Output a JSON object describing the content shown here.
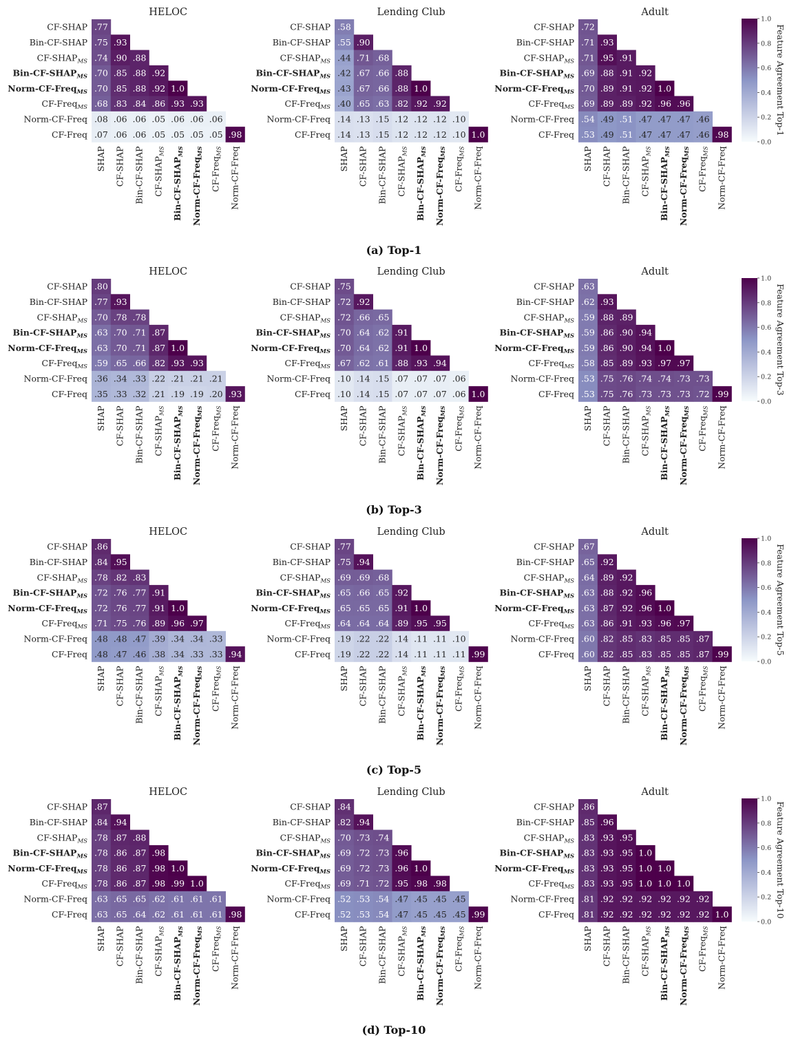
{
  "labels": {
    "rows": [
      {
        "base": "CF-SHAP",
        "sub": "",
        "bold": false
      },
      {
        "base": "Bin-CF-SHAP",
        "sub": "",
        "bold": false
      },
      {
        "base": "CF-SHAP",
        "sub": "MS",
        "bold": false
      },
      {
        "base": "Bin-CF-SHAP",
        "sub": "MS",
        "bold": true
      },
      {
        "base": "Norm-CF-Freq",
        "sub": "MS",
        "bold": true
      },
      {
        "base": "CF-Freq",
        "sub": "MS",
        "bold": false
      },
      {
        "base": "Norm-CF-Freq",
        "sub": "",
        "bold": false
      },
      {
        "base": "CF-Freq",
        "sub": "",
        "bold": false
      }
    ],
    "cols": [
      {
        "base": "SHAP",
        "sub": "",
        "bold": false
      },
      {
        "base": "CF-SHAP",
        "sub": "",
        "bold": false
      },
      {
        "base": "Bin-CF-SHAP",
        "sub": "",
        "bold": false
      },
      {
        "base": "CF-SHAP",
        "sub": "MS",
        "bold": false
      },
      {
        "base": "Bin-CF-SHAP",
        "sub": "MS",
        "bold": true
      },
      {
        "base": "Norm-CF-Freq",
        "sub": "MS",
        "bold": true
      },
      {
        "base": "CF-Freq",
        "sub": "MS",
        "bold": false
      },
      {
        "base": "Norm-CF-Freq",
        "sub": "",
        "bold": false
      }
    ]
  },
  "colorbar": {
    "ticks": [
      "0.0",
      "0.2",
      "0.4",
      "0.6",
      "0.8",
      "1.0"
    ]
  },
  "colors": {
    "low": "#f7fcfd",
    "mid": "#8c96c6",
    "high": "#4d004b"
  },
  "chart_data": [
    {
      "type": "heatmap",
      "caption": "(a) Top-1",
      "colorbar_label": "Feature Agreement Top-1",
      "panels": [
        {
          "title": "HELOC",
          "values": [
            [
              ".77"
            ],
            [
              ".75",
              ".93"
            ],
            [
              ".74",
              ".90",
              ".88"
            ],
            [
              ".70",
              ".85",
              ".88",
              ".92"
            ],
            [
              ".70",
              ".85",
              ".88",
              ".92",
              "1.0"
            ],
            [
              ".68",
              ".83",
              ".84",
              ".86",
              ".93",
              ".93"
            ],
            [
              ".08",
              ".06",
              ".06",
              ".05",
              ".06",
              ".06",
              ".06"
            ],
            [
              ".07",
              ".06",
              ".06",
              ".05",
              ".05",
              ".05",
              ".05",
              ".98"
            ]
          ]
        },
        {
          "title": "Lending Club",
          "values": [
            [
              ".58"
            ],
            [
              ".55",
              ".90"
            ],
            [
              ".44",
              ".71",
              ".68"
            ],
            [
              ".42",
              ".67",
              ".66",
              ".88"
            ],
            [
              ".43",
              ".67",
              ".66",
              ".88",
              "1.0"
            ],
            [
              ".40",
              ".65",
              ".63",
              ".82",
              ".92",
              ".92"
            ],
            [
              ".14",
              ".13",
              ".15",
              ".12",
              ".12",
              ".12",
              ".10"
            ],
            [
              ".14",
              ".13",
              ".15",
              ".12",
              ".12",
              ".12",
              ".10",
              "1.0"
            ]
          ]
        },
        {
          "title": "Adult",
          "values": [
            [
              ".72"
            ],
            [
              ".71",
              ".93"
            ],
            [
              ".71",
              ".95",
              ".91"
            ],
            [
              ".69",
              ".88",
              ".91",
              ".92"
            ],
            [
              ".70",
              ".89",
              ".91",
              ".92",
              "1.0"
            ],
            [
              ".69",
              ".89",
              ".89",
              ".92",
              ".96",
              ".96"
            ],
            [
              ".54",
              ".49",
              ".51",
              ".47",
              ".47",
              ".47",
              ".46"
            ],
            [
              ".53",
              ".49",
              ".51",
              ".47",
              ".47",
              ".47",
              ".46",
              ".98"
            ]
          ]
        }
      ]
    },
    {
      "type": "heatmap",
      "caption": "(b) Top-3",
      "colorbar_label": "Feature Agreement Top-3",
      "panels": [
        {
          "title": "HELOC",
          "values": [
            [
              ".80"
            ],
            [
              ".77",
              ".93"
            ],
            [
              ".70",
              ".78",
              ".78"
            ],
            [
              ".63",
              ".70",
              ".71",
              ".87"
            ],
            [
              ".63",
              ".70",
              ".71",
              ".87",
              "1.0"
            ],
            [
              ".59",
              ".65",
              ".66",
              ".82",
              ".93",
              ".93"
            ],
            [
              ".36",
              ".34",
              ".33",
              ".22",
              ".21",
              ".21",
              ".21"
            ],
            [
              ".35",
              ".33",
              ".32",
              ".21",
              ".19",
              ".19",
              ".20",
              ".93"
            ]
          ]
        },
        {
          "title": "Lending Club",
          "values": [
            [
              ".75"
            ],
            [
              ".72",
              ".92"
            ],
            [
              ".72",
              ".66",
              ".65"
            ],
            [
              ".70",
              ".64",
              ".62",
              ".91"
            ],
            [
              ".70",
              ".64",
              ".62",
              ".91",
              "1.0"
            ],
            [
              ".67",
              ".62",
              ".61",
              ".88",
              ".93",
              ".94"
            ],
            [
              ".10",
              ".14",
              ".15",
              ".07",
              ".07",
              ".07",
              ".06"
            ],
            [
              ".10",
              ".14",
              ".15",
              ".07",
              ".07",
              ".07",
              ".06",
              "1.0"
            ]
          ]
        },
        {
          "title": "Adult",
          "values": [
            [
              ".63"
            ],
            [
              ".62",
              ".93"
            ],
            [
              ".59",
              ".88",
              ".89"
            ],
            [
              ".59",
              ".86",
              ".90",
              ".94"
            ],
            [
              ".59",
              ".86",
              ".90",
              ".94",
              "1.0"
            ],
            [
              ".58",
              ".85",
              ".89",
              ".93",
              ".97",
              ".97"
            ],
            [
              ".53",
              ".75",
              ".76",
              ".74",
              ".74",
              ".73",
              ".73"
            ],
            [
              ".53",
              ".75",
              ".76",
              ".73",
              ".73",
              ".73",
              ".72",
              ".99"
            ]
          ]
        }
      ]
    },
    {
      "type": "heatmap",
      "caption": "(c) Top-5",
      "colorbar_label": "Feature Agreement Top-5",
      "panels": [
        {
          "title": "HELOC",
          "values": [
            [
              ".86"
            ],
            [
              ".84",
              ".95"
            ],
            [
              ".78",
              ".82",
              ".83"
            ],
            [
              ".72",
              ".76",
              ".77",
              ".91"
            ],
            [
              ".72",
              ".76",
              ".77",
              ".91",
              "1.0"
            ],
            [
              ".71",
              ".75",
              ".76",
              ".89",
              ".96",
              ".97"
            ],
            [
              ".48",
              ".48",
              ".47",
              ".39",
              ".34",
              ".34",
              ".33"
            ],
            [
              ".48",
              ".47",
              ".46",
              ".38",
              ".34",
              ".33",
              ".33",
              ".94"
            ]
          ]
        },
        {
          "title": "Lending Club",
          "values": [
            [
              ".77"
            ],
            [
              ".75",
              ".94"
            ],
            [
              ".69",
              ".69",
              ".68"
            ],
            [
              ".65",
              ".66",
              ".65",
              ".92"
            ],
            [
              ".65",
              ".65",
              ".65",
              ".91",
              "1.0"
            ],
            [
              ".64",
              ".64",
              ".64",
              ".89",
              ".95",
              ".95"
            ],
            [
              ".19",
              ".22",
              ".22",
              ".14",
              ".11",
              ".11",
              ".10"
            ],
            [
              ".19",
              ".22",
              ".22",
              ".14",
              ".11",
              ".11",
              ".11",
              ".99"
            ]
          ]
        },
        {
          "title": "Adult",
          "values": [
            [
              ".67"
            ],
            [
              ".65",
              ".92"
            ],
            [
              ".64",
              ".89",
              ".92"
            ],
            [
              ".63",
              ".88",
              ".92",
              ".96"
            ],
            [
              ".63",
              ".87",
              ".92",
              ".96",
              "1.0"
            ],
            [
              ".63",
              ".86",
              ".91",
              ".93",
              ".96",
              ".97"
            ],
            [
              ".60",
              ".82",
              ".85",
              ".83",
              ".85",
              ".85",
              ".87"
            ],
            [
              ".60",
              ".82",
              ".85",
              ".83",
              ".85",
              ".85",
              ".87",
              ".99"
            ]
          ]
        }
      ]
    },
    {
      "type": "heatmap",
      "caption": "(d) Top-10",
      "colorbar_label": "Feature Agreement Top-10",
      "panels": [
        {
          "title": "HELOC",
          "values": [
            [
              ".87"
            ],
            [
              ".84",
              ".94"
            ],
            [
              ".78",
              ".87",
              ".88"
            ],
            [
              ".78",
              ".86",
              ".87",
              ".98"
            ],
            [
              ".78",
              ".86",
              ".87",
              ".98",
              "1.0"
            ],
            [
              ".78",
              ".86",
              ".87",
              ".98",
              ".99",
              "1.0"
            ],
            [
              ".63",
              ".65",
              ".65",
              ".62",
              ".61",
              ".61",
              ".61"
            ],
            [
              ".63",
              ".65",
              ".64",
              ".62",
              ".61",
              ".61",
              ".61",
              ".98"
            ]
          ]
        },
        {
          "title": "Lending Club",
          "values": [
            [
              ".84"
            ],
            [
              ".82",
              ".94"
            ],
            [
              ".70",
              ".73",
              ".74"
            ],
            [
              ".69",
              ".72",
              ".73",
              ".96"
            ],
            [
              ".69",
              ".72",
              ".73",
              ".96",
              "1.0"
            ],
            [
              ".69",
              ".71",
              ".72",
              ".95",
              ".98",
              ".98"
            ],
            [
              ".52",
              ".53",
              ".54",
              ".47",
              ".45",
              ".45",
              ".45"
            ],
            [
              ".52",
              ".53",
              ".54",
              ".47",
              ".45",
              ".45",
              ".45",
              ".99"
            ]
          ]
        },
        {
          "title": "Adult",
          "values": [
            [
              ".86"
            ],
            [
              ".85",
              ".96"
            ],
            [
              ".83",
              ".93",
              ".95"
            ],
            [
              ".83",
              ".93",
              ".95",
              "1.0"
            ],
            [
              ".83",
              ".93",
              ".95",
              "1.0",
              "1.0"
            ],
            [
              ".83",
              ".93",
              ".95",
              "1.0",
              "1.0",
              "1.0"
            ],
            [
              ".81",
              ".92",
              ".92",
              ".92",
              ".92",
              ".92",
              ".92"
            ],
            [
              ".81",
              ".92",
              ".92",
              ".92",
              ".92",
              ".92",
              ".92",
              "1.0"
            ]
          ]
        }
      ]
    }
  ]
}
